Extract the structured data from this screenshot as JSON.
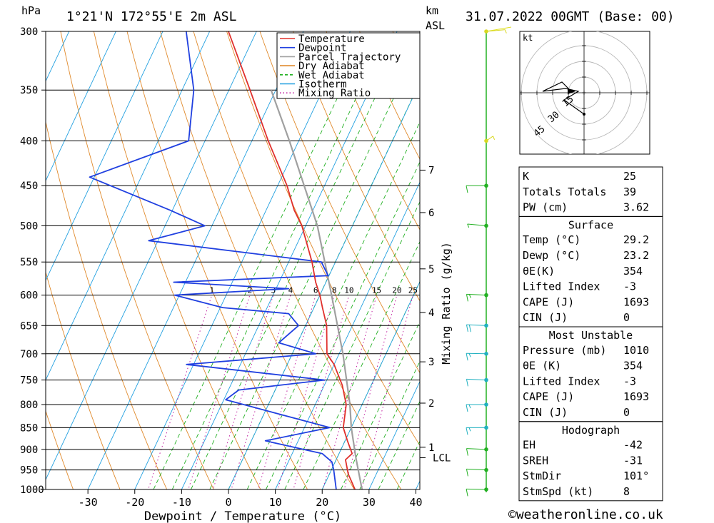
{
  "header": {
    "pressure_unit": "hPa",
    "location": "1°21'N 172°55'E 2m ASL",
    "height_unit_km": "km",
    "height_unit_asl": "ASL",
    "datetime": "31.07.2022 00GMT (Base: 00)"
  },
  "footer": {
    "copyright": "©weatheronline.co.uk"
  },
  "chart_data": {
    "type": "line",
    "subtype": "skew-T log-P",
    "xlabel": "Dewpoint / Temperature (°C)",
    "ylabel": "hPa",
    "x_ticks": [
      -30,
      -20,
      -10,
      0,
      10,
      20,
      30,
      40
    ],
    "p_levels": [
      300,
      350,
      400,
      450,
      500,
      550,
      600,
      650,
      700,
      750,
      800,
      850,
      900,
      950,
      1000
    ],
    "km_ticks": [
      {
        "label": "7",
        "p": 432
      },
      {
        "label": "6",
        "p": 483
      },
      {
        "label": "5",
        "p": 560
      },
      {
        "label": "4",
        "p": 628
      },
      {
        "label": "3",
        "p": 715
      },
      {
        "label": "2",
        "p": 797
      },
      {
        "label": "1",
        "p": 895
      },
      {
        "label": "LCL",
        "p": 920
      }
    ],
    "mixing_ratio_axis_label": "Mixing Ratio (g/kg)",
    "mixing_ratio_values": [
      1,
      2,
      3,
      4,
      6,
      8,
      10,
      15,
      20,
      25
    ],
    "legend": [
      {
        "name": "Temperature",
        "color": "#e0302c",
        "style": "solid"
      },
      {
        "name": "Dewpoint",
        "color": "#2040e0",
        "style": "solid"
      },
      {
        "name": "Parcel Trajectory",
        "color": "#a0a0a0",
        "style": "solid"
      },
      {
        "name": "Dry Adiabat",
        "color": "#e08a2c",
        "style": "solid"
      },
      {
        "name": "Wet Adiabat",
        "color": "#22b022",
        "style": "dashed"
      },
      {
        "name": "Isotherm",
        "color": "#22a0e0",
        "style": "solid"
      },
      {
        "name": "Mixing Ratio",
        "color": "#c020a0",
        "style": "dotted"
      }
    ],
    "temperature": [
      {
        "p": 1013,
        "t": 29.2
      },
      {
        "p": 1000,
        "t": 27.0
      },
      {
        "p": 960,
        "t": 24.0
      },
      {
        "p": 925,
        "t": 22.0
      },
      {
        "p": 910,
        "t": 22.8
      },
      {
        "p": 880,
        "t": 20.5
      },
      {
        "p": 850,
        "t": 18.3
      },
      {
        "p": 800,
        "t": 16.6
      },
      {
        "p": 760,
        "t": 13.8
      },
      {
        "p": 720,
        "t": 10.0
      },
      {
        "p": 700,
        "t": 7.4
      },
      {
        "p": 650,
        "t": 4.5
      },
      {
        "p": 620,
        "t": 1.8
      },
      {
        "p": 600,
        "t": 0.0
      },
      {
        "p": 580,
        "t": -2.2
      },
      {
        "p": 550,
        "t": -5.0
      },
      {
        "p": 500,
        "t": -10.8
      },
      {
        "p": 480,
        "t": -14.0
      },
      {
        "p": 450,
        "t": -18.0
      },
      {
        "p": 400,
        "t": -26.5
      },
      {
        "p": 350,
        "t": -35.5
      },
      {
        "p": 300,
        "t": -46.0
      }
    ],
    "dewpoint": [
      {
        "p": 1013,
        "t": 23.2
      },
      {
        "p": 1000,
        "t": 23.0
      },
      {
        "p": 950,
        "t": 20.5
      },
      {
        "p": 930,
        "t": 19.3
      },
      {
        "p": 910,
        "t": 16.4
      },
      {
        "p": 880,
        "t": 3.0
      },
      {
        "p": 850,
        "t": 15.4
      },
      {
        "p": 790,
        "t": -9.6
      },
      {
        "p": 770,
        "t": -7.8
      },
      {
        "p": 750,
        "t": 9.5
      },
      {
        "p": 720,
        "t": -21.5
      },
      {
        "p": 700,
        "t": 5.0
      },
      {
        "p": 680,
        "t": -4.0
      },
      {
        "p": 650,
        "t": -1.5
      },
      {
        "p": 630,
        "t": -4.8
      },
      {
        "p": 620,
        "t": -19.5
      },
      {
        "p": 600,
        "t": -31.0
      },
      {
        "p": 590,
        "t": -7.3
      },
      {
        "p": 580,
        "t": -32.5
      },
      {
        "p": 570,
        "t": -0.2
      },
      {
        "p": 550,
        "t": -3.0
      },
      {
        "p": 520,
        "t": -42.0
      },
      {
        "p": 500,
        "t": -31.5
      },
      {
        "p": 480,
        "t": -40.5
      },
      {
        "p": 440,
        "t": -61.0
      },
      {
        "p": 400,
        "t": -43.5
      },
      {
        "p": 350,
        "t": -47.5
      },
      {
        "p": 300,
        "t": -55.0
      }
    ],
    "parcel": [
      {
        "p": 1013,
        "t": 29.2
      },
      {
        "p": 920,
        "t": 24.0
      },
      {
        "p": 850,
        "t": 20.0
      },
      {
        "p": 800,
        "t": 17.4
      },
      {
        "p": 700,
        "t": 10.8
      },
      {
        "p": 600,
        "t": 2.5
      },
      {
        "p": 500,
        "t": -7.5
      },
      {
        "p": 400,
        "t": -22.0
      },
      {
        "p": 350,
        "t": -31.0
      }
    ],
    "wind_barbs": [
      {
        "p": 1000,
        "speed_kt": 12,
        "dir": 95
      },
      {
        "p": 950,
        "speed_kt": 10,
        "dir": 100
      },
      {
        "p": 900,
        "speed_kt": 8,
        "dir": 100
      },
      {
        "p": 850,
        "speed_kt": 15,
        "dir": 90
      },
      {
        "p": 800,
        "speed_kt": 15,
        "dir": 90
      },
      {
        "p": 750,
        "speed_kt": 12,
        "dir": 100
      },
      {
        "p": 700,
        "speed_kt": 15,
        "dir": 95
      },
      {
        "p": 650,
        "speed_kt": 20,
        "dir": 100
      },
      {
        "p": 600,
        "speed_kt": 15,
        "dir": 100
      },
      {
        "p": 500,
        "speed_kt": 5,
        "dir": 110
      },
      {
        "p": 450,
        "speed_kt": 10,
        "dir": 90
      },
      {
        "p": 400,
        "speed_kt": 5,
        "dir": 200
      },
      {
        "p": 300,
        "speed_kt": 5,
        "dir": 250
      }
    ],
    "hodograph": {
      "unit": "kt",
      "ring_labels": [
        "15",
        "30",
        "45"
      ]
    }
  },
  "indices": {
    "general": [
      {
        "label": "K",
        "value": "25"
      },
      {
        "label": "Totals Totals",
        "value": "39"
      },
      {
        "label": "PW (cm)",
        "value": "3.62"
      }
    ],
    "surface": {
      "title": "Surface",
      "rows": [
        {
          "label": "Temp (°C)",
          "value": "29.2"
        },
        {
          "label": "Dewp (°C)",
          "value": "23.2"
        },
        {
          "label": "θE(K)",
          "value": "354"
        },
        {
          "label": "Lifted Index",
          "value": "-3"
        },
        {
          "label": "CAPE (J)",
          "value": "1693"
        },
        {
          "label": "CIN (J)",
          "value": "0"
        }
      ]
    },
    "most_unstable": {
      "title": "Most Unstable",
      "rows": [
        {
          "label": "Pressure (mb)",
          "value": "1010"
        },
        {
          "label": "θE (K)",
          "value": "354"
        },
        {
          "label": "Lifted Index",
          "value": "-3"
        },
        {
          "label": "CAPE (J)",
          "value": "1693"
        },
        {
          "label": "CIN (J)",
          "value": "0"
        }
      ]
    },
    "hodograph": {
      "title": "Hodograph",
      "rows": [
        {
          "label": "EH",
          "value": "-42"
        },
        {
          "label": "SREH",
          "value": "-31"
        },
        {
          "label": "StmDir",
          "value": "101°"
        },
        {
          "label": "StmSpd (kt)",
          "value": "8"
        }
      ]
    }
  }
}
